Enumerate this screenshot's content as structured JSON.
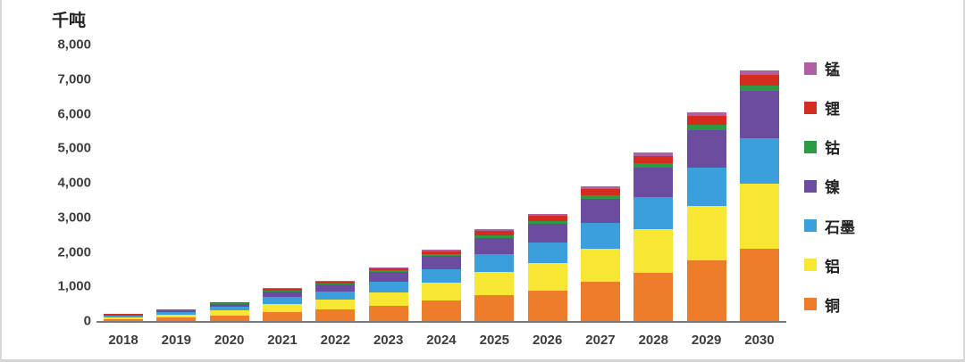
{
  "chart_data": {
    "type": "bar",
    "stacked": true,
    "unit_label": "千吨",
    "title": "",
    "xlabel": "",
    "ylabel": "千吨",
    "ylim": [
      0,
      8000
    ],
    "y_step": 1000,
    "y_ticks": [
      "0",
      "1,000",
      "2,000",
      "3,000",
      "4,000",
      "5,000",
      "6,000",
      "7,000",
      "8,000"
    ],
    "grid": false,
    "legend_position": "right",
    "categories": [
      "2018",
      "2019",
      "2020",
      "2021",
      "2022",
      "2023",
      "2024",
      "2025",
      "2026",
      "2027",
      "2028",
      "2029",
      "2030"
    ],
    "series": [
      {
        "name": "铜",
        "color": "#ED7D2B",
        "values": [
          60,
          105,
          165,
          270,
          330,
          450,
          600,
          760,
          890,
          1130,
          1400,
          1750,
          2100
        ]
      },
      {
        "name": "铝",
        "color": "#F7E733",
        "values": [
          50,
          85,
          135,
          230,
          280,
          380,
          500,
          650,
          780,
          950,
          1250,
          1580,
          1880
        ]
      },
      {
        "name": "石墨",
        "color": "#3A9FDA",
        "values": [
          40,
          70,
          110,
          190,
          230,
          310,
          400,
          520,
          600,
          760,
          950,
          1100,
          1320
        ]
      },
      {
        "name": "镍",
        "color": "#6C4C9F",
        "values": [
          30,
          55,
          90,
          170,
          210,
          280,
          380,
          480,
          550,
          700,
          850,
          1100,
          1350
        ]
      },
      {
        "name": "钴",
        "color": "#2E9B44",
        "values": [
          5,
          10,
          15,
          25,
          30,
          40,
          55,
          70,
          80,
          100,
          120,
          150,
          170
        ]
      },
      {
        "name": "锂",
        "color": "#D42D20",
        "values": [
          10,
          18,
          25,
          45,
          50,
          70,
          90,
          120,
          140,
          180,
          210,
          260,
          300
        ]
      },
      {
        "name": "锰",
        "color": "#B05FA4",
        "values": [
          5,
          7,
          10,
          20,
          20,
          30,
          40,
          50,
          60,
          80,
          95,
          110,
          120
        ]
      }
    ]
  }
}
